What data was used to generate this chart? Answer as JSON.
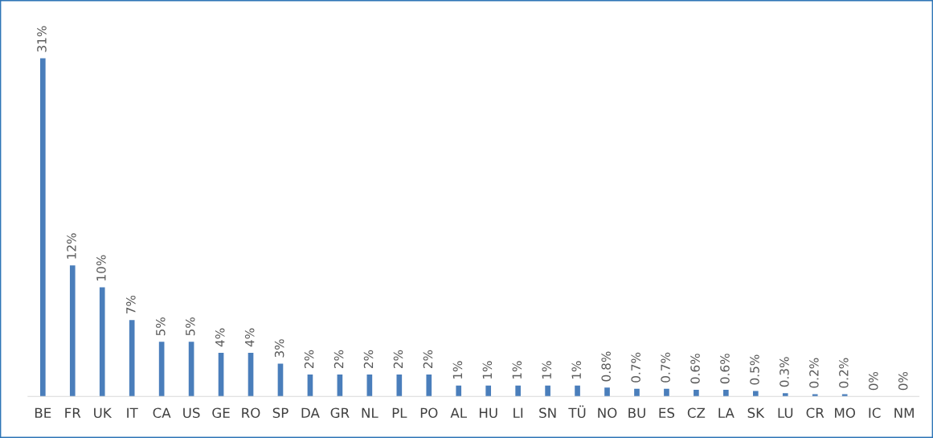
{
  "chart_data": {
    "type": "bar",
    "categories": [
      "BE",
      "FR",
      "UK",
      "IT",
      "CA",
      "US",
      "GE",
      "RO",
      "SP",
      "DA",
      "GR",
      "NL",
      "PL",
      "PO",
      "AL",
      "HU",
      "LI",
      "SN",
      "TÜ",
      "NO",
      "BU",
      "ES",
      "CZ",
      "LA",
      "SK",
      "LU",
      "CR",
      "MO",
      "IC",
      "NM"
    ],
    "values": [
      31,
      12,
      10,
      7,
      5,
      5,
      4,
      4,
      3,
      2,
      2,
      2,
      2,
      2,
      1,
      1,
      1,
      1,
      1,
      0.8,
      0.7,
      0.7,
      0.6,
      0.6,
      0.5,
      0.3,
      0.2,
      0.2,
      0,
      0
    ],
    "value_labels": [
      "31%",
      "12%",
      "10%",
      "7%",
      "5%",
      "5%",
      "4%",
      "4%",
      "3%",
      "2%",
      "2%",
      "2%",
      "2%",
      "2%",
      "1%",
      "1%",
      "1%",
      "1%",
      "1%",
      "0.8%",
      "0.7%",
      "0.7%",
      "0.6%",
      "0.6%",
      "0.5%",
      "0.3%",
      "0.2%",
      "0.2%",
      "0%",
      "0%"
    ],
    "color": "#4a7ebb",
    "grid": false,
    "legend": false,
    "tick_labels": "x"
  }
}
